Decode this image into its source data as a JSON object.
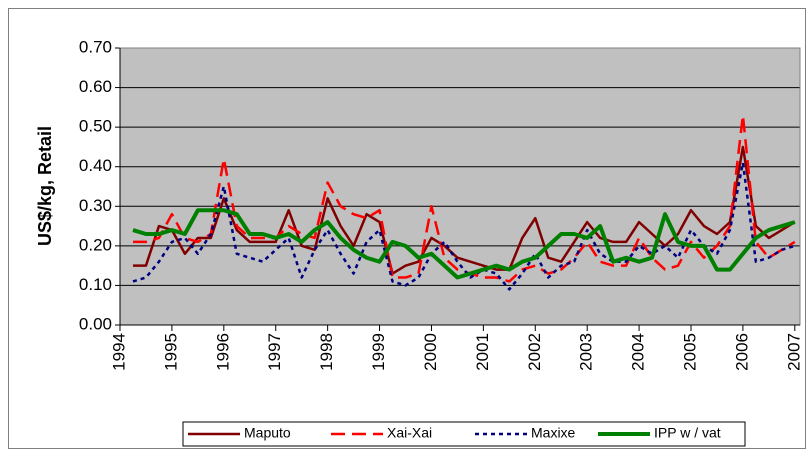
{
  "chart_data": {
    "type": "line",
    "y_label": "US$/kg, Retail",
    "x": [
      1994.25,
      1994.5,
      1994.75,
      1995.0,
      1995.25,
      1995.5,
      1995.75,
      1996.0,
      1996.25,
      1996.5,
      1996.75,
      1997.0,
      1997.25,
      1997.5,
      1997.75,
      1998.0,
      1998.25,
      1998.5,
      1998.75,
      1999.0,
      1999.25,
      1999.5,
      1999.75,
      2000.0,
      2000.25,
      2000.5,
      2000.75,
      2001.0,
      2001.25,
      2001.5,
      2001.75,
      2002.0,
      2002.25,
      2002.5,
      2002.75,
      2003.0,
      2003.25,
      2003.5,
      2003.75,
      2004.0,
      2004.25,
      2004.5,
      2004.75,
      2005.0,
      2005.25,
      2005.5,
      2005.75,
      2006.0,
      2006.25,
      2006.5,
      2006.75,
      2007.0
    ],
    "series": [
      {
        "name": "Maputo",
        "color": "#800000",
        "dash": "solid",
        "width": 2.5,
        "values": [
          0.15,
          0.15,
          0.25,
          0.24,
          0.18,
          0.22,
          0.22,
          0.32,
          0.24,
          0.21,
          0.21,
          0.21,
          0.29,
          0.2,
          0.19,
          0.32,
          0.25,
          0.2,
          0.28,
          0.26,
          0.13,
          0.15,
          0.16,
          0.22,
          0.2,
          0.17,
          0.16,
          0.15,
          0.14,
          0.14,
          0.22,
          0.27,
          0.17,
          0.16,
          0.21,
          0.26,
          0.22,
          0.21,
          0.21,
          0.26,
          0.23,
          0.2,
          0.23,
          0.29,
          0.25,
          0.23,
          0.26,
          0.45,
          0.25,
          0.22,
          0.24,
          0.26
        ]
      },
      {
        "name": "Xai-Xai",
        "color": "#ff0000",
        "dash": "long-dash",
        "width": 2.5,
        "values": [
          0.21,
          0.21,
          0.22,
          0.28,
          0.22,
          0.21,
          0.23,
          0.42,
          0.25,
          0.22,
          0.22,
          0.22,
          0.25,
          0.23,
          0.22,
          0.36,
          0.3,
          0.28,
          0.27,
          0.29,
          0.12,
          0.12,
          0.13,
          0.3,
          0.17,
          0.14,
          0.13,
          0.12,
          0.12,
          0.11,
          0.14,
          0.15,
          0.13,
          0.14,
          0.17,
          0.21,
          0.16,
          0.15,
          0.15,
          0.22,
          0.17,
          0.14,
          0.15,
          0.21,
          0.17,
          0.2,
          0.25,
          0.53,
          0.21,
          0.17,
          0.19,
          0.21
        ]
      },
      {
        "name": "Maxixe",
        "color": "#000080",
        "dash": "dot",
        "width": 2.5,
        "values": [
          0.11,
          0.12,
          0.16,
          0.21,
          0.22,
          0.18,
          0.23,
          0.35,
          0.18,
          0.17,
          0.16,
          0.19,
          0.22,
          0.12,
          0.19,
          0.24,
          0.18,
          0.13,
          0.21,
          0.24,
          0.11,
          0.1,
          0.12,
          0.18,
          0.21,
          0.16,
          0.12,
          0.14,
          0.13,
          0.09,
          0.13,
          0.18,
          0.12,
          0.15,
          0.16,
          0.24,
          0.18,
          0.16,
          0.16,
          0.2,
          0.18,
          0.2,
          0.17,
          0.24,
          0.2,
          0.18,
          0.24,
          0.41,
          0.16,
          0.17,
          0.19,
          0.2
        ]
      },
      {
        "name": "IPP w / vat",
        "color": "#008000",
        "dash": "solid",
        "width": 4,
        "values": [
          0.24,
          0.23,
          0.23,
          0.24,
          0.23,
          0.29,
          0.29,
          0.29,
          0.28,
          0.23,
          0.23,
          0.22,
          0.23,
          0.21,
          0.24,
          0.26,
          0.22,
          0.19,
          0.17,
          0.16,
          0.21,
          0.2,
          0.17,
          0.18,
          0.15,
          0.12,
          0.13,
          0.14,
          0.15,
          0.14,
          0.16,
          0.17,
          0.2,
          0.23,
          0.23,
          0.22,
          0.25,
          0.16,
          0.17,
          0.16,
          0.17,
          0.28,
          0.21,
          0.2,
          0.2,
          0.14,
          0.14,
          0.18,
          0.22,
          0.24,
          0.25,
          0.26
        ]
      }
    ],
    "xlim": [
      1994,
      2007.1
    ],
    "xticks": [
      1994,
      1995,
      1996,
      1997,
      1998,
      1999,
      2000,
      2001,
      2002,
      2003,
      2004,
      2005,
      2006,
      2007
    ],
    "ylim": [
      0,
      0.7
    ],
    "yticks": [
      {
        "value": 0,
        "label": "0.00"
      },
      {
        "value": 0.1,
        "label": "0.10"
      },
      {
        "value": 0.2,
        "label": "0.20"
      },
      {
        "value": 0.3,
        "label": "0.30"
      },
      {
        "value": 0.4,
        "label": "0.40"
      },
      {
        "value": 0.5,
        "label": "0.50"
      },
      {
        "value": 0.6,
        "label": "0.60"
      },
      {
        "value": 0.7,
        "label": "0.70"
      }
    ],
    "grid": true,
    "plot_background": "#c0c0c0",
    "legend": "bottom"
  }
}
